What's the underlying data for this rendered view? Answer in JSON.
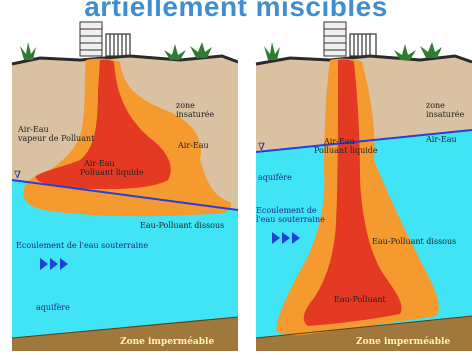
{
  "title": "artiellement miscibles",
  "colors": {
    "title": "#3f8ed1",
    "soil": "#d9c1a1",
    "aquifer": "#40e4f4",
    "impermeable": "#a0783c",
    "plume_outer": "#f59a2e",
    "plume_inner": "#e43a24",
    "water_table": "#2a3fd6",
    "flow_arrow": "#2040d8"
  },
  "left_panel": {
    "labels": {
      "vadose_zone": "zone\ninsaturée",
      "air_water_vapor": "Air-Eau\nvapeur de Polluant",
      "air_water": "Air-Eau",
      "air_water_liquid": "Air-Eau\nPolluant liquide",
      "water_dissolved": "Eau-Polluant dissous",
      "flow": "Ecoulement de l'eau souterraine",
      "aquifer": "aquifère",
      "impermeable": "Zone imperméable",
      "water_table_symbol": "∇"
    }
  },
  "right_panel": {
    "labels": {
      "vadose_zone": "zone\ninsaturée",
      "air_water": "Air-Eau",
      "air_water_liquid": "Air-Eau\nPolluant liquide",
      "aquifer": "aquifère",
      "flow": "Ecoulement de\nl'eau souterraine",
      "water_dissolved": "Eau-Polluant dissous",
      "water_pollutant": "Eau-Polluant",
      "impermeable": "Zone imperméable",
      "water_table_symbol": "∇"
    }
  }
}
